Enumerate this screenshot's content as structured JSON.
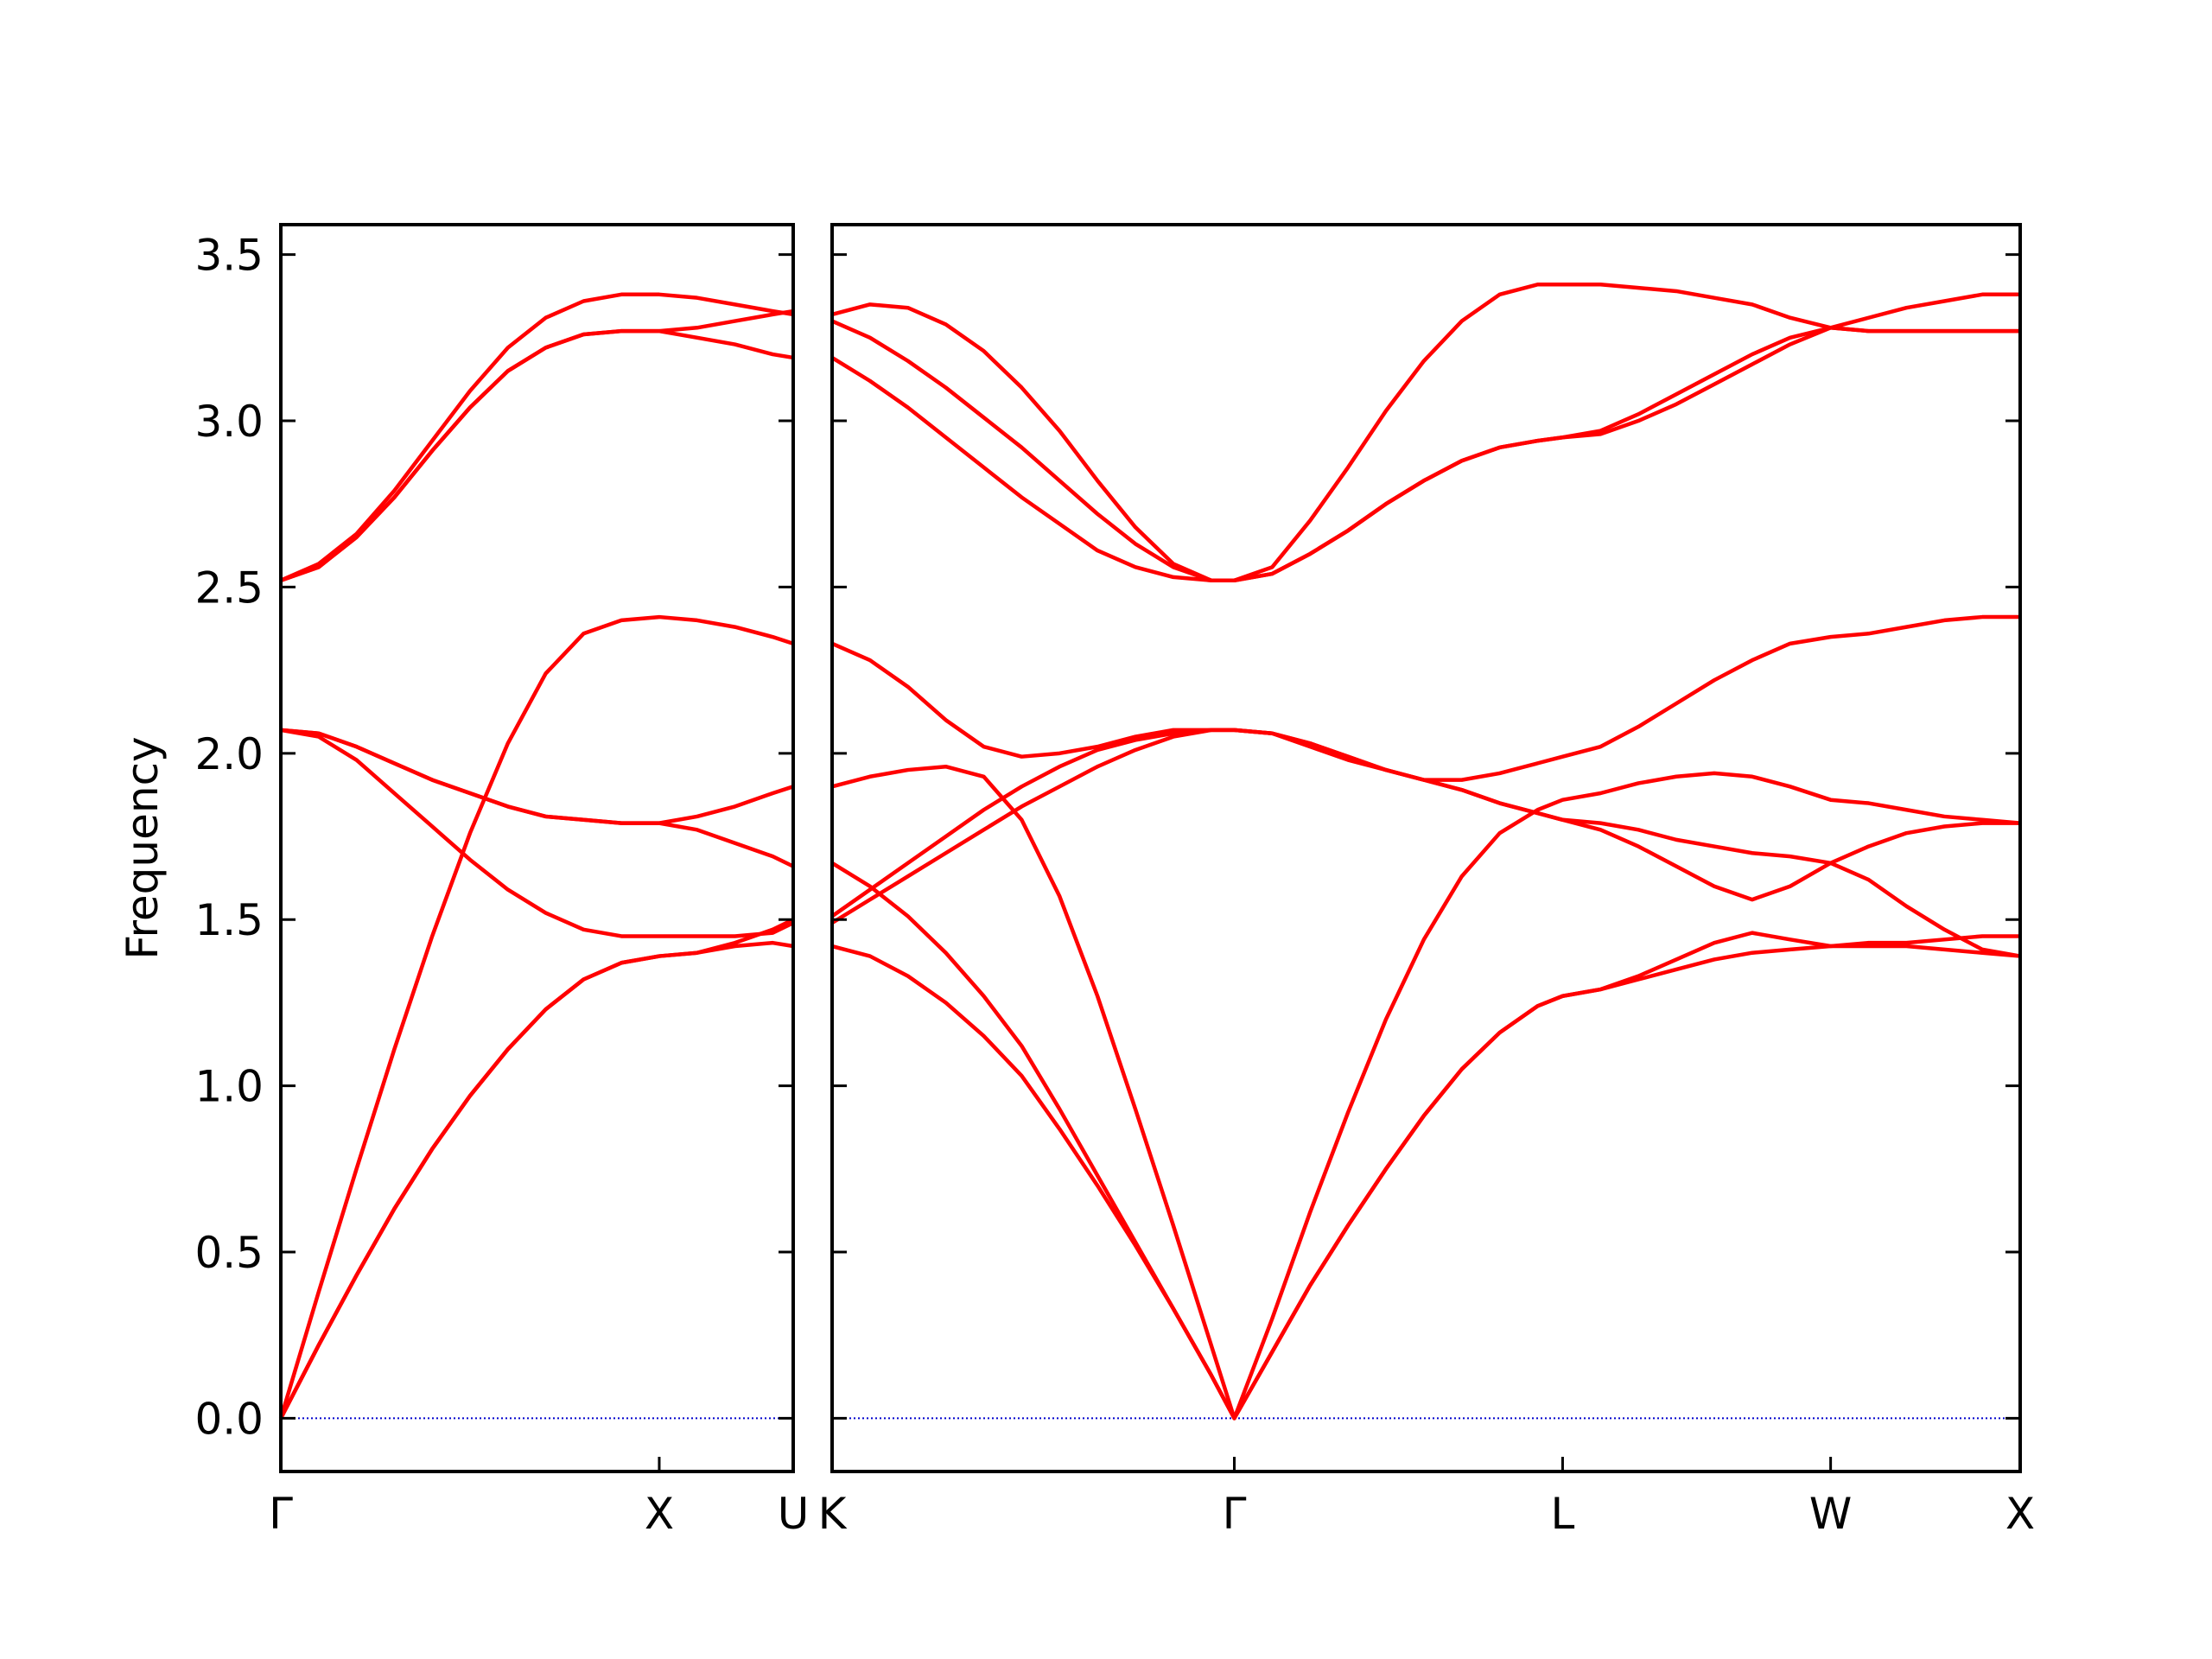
{
  "chart_data": [
    {
      "type": "line",
      "ylabel": "Frequency",
      "color": "#ff0000",
      "hline": 0,
      "hline_color": "#0000cc",
      "ytick_labels": true,
      "ylim": [
        -0.16,
        3.59
      ],
      "yticks": [
        {
          "value": 0,
          "label": "0.0"
        },
        0.5,
        {
          "value": 1,
          "label": "1.0"
        },
        1.5,
        {
          "value": 2,
          "label": "2.0"
        },
        2.5,
        {
          "value": 3,
          "label": "3.0"
        },
        3.5
      ],
      "xlim": [
        0,
        1.354
      ],
      "xticks": [
        {
          "value": 0,
          "label": "Γ"
        },
        {
          "value": 1,
          "label": "X"
        },
        {
          "value": 1.354,
          "label": "U"
        }
      ],
      "x": [
        0,
        0.1,
        0.2,
        0.3,
        0.4,
        0.5,
        0.6,
        0.7,
        0.8,
        0.9,
        1.0,
        1.1,
        1.2,
        1.3,
        1.354
      ],
      "series": [
        {
          "values": [
            0,
            0.22,
            0.43,
            0.63,
            0.81,
            0.97,
            1.11,
            1.23,
            1.32,
            1.37,
            1.39,
            1.4,
            1.42,
            1.43,
            1.42
          ]
        },
        {
          "values": [
            0,
            0.22,
            0.43,
            0.63,
            0.81,
            0.97,
            1.11,
            1.23,
            1.32,
            1.37,
            1.39,
            1.4,
            1.43,
            1.47,
            1.5
          ]
        },
        {
          "values": [
            2.07,
            2.05,
            1.98,
            1.88,
            1.78,
            1.68,
            1.59,
            1.52,
            1.47,
            1.45,
            1.45,
            1.45,
            1.45,
            1.46,
            1.49
          ]
        },
        {
          "values": [
            2.07,
            2.06,
            2.02,
            1.97,
            1.92,
            1.88,
            1.84,
            1.81,
            1.8,
            1.79,
            1.79,
            1.77,
            1.73,
            1.69,
            1.66
          ]
        },
        {
          "values": [
            2.07,
            2.06,
            2.02,
            1.97,
            1.92,
            1.88,
            1.84,
            1.81,
            1.8,
            1.79,
            1.79,
            1.81,
            1.84,
            1.88,
            1.9
          ]
        },
        {
          "values": [
            0,
            0.38,
            0.75,
            1.11,
            1.45,
            1.76,
            2.03,
            2.24,
            2.36,
            2.4,
            2.41,
            2.4,
            2.38,
            2.35,
            2.33
          ]
        },
        {
          "values": [
            2.52,
            2.56,
            2.65,
            2.77,
            2.91,
            3.04,
            3.15,
            3.22,
            3.26,
            3.27,
            3.27,
            3.25,
            3.23,
            3.2,
            3.19
          ]
        },
        {
          "values": [
            2.52,
            2.56,
            2.65,
            2.77,
            2.91,
            3.04,
            3.15,
            3.22,
            3.26,
            3.27,
            3.27,
            3.28,
            3.3,
            3.32,
            3.33
          ]
        },
        {
          "values": [
            2.52,
            2.57,
            2.66,
            2.79,
            2.94,
            3.09,
            3.22,
            3.31,
            3.36,
            3.38,
            3.38,
            3.37,
            3.35,
            3.33,
            3.32
          ]
        }
      ]
    },
    {
      "type": "line",
      "color": "#ff0000",
      "hline": 0,
      "hline_color": "#0000cc",
      "ytick_labels": false,
      "ylim": [
        -0.16,
        3.59
      ],
      "yticks": [
        {
          "value": 0,
          "label": "0.0"
        },
        0.5,
        {
          "value": 1,
          "label": "1.0"
        },
        1.5,
        {
          "value": 2,
          "label": "2.0"
        },
        2.5,
        {
          "value": 3,
          "label": "3.0"
        },
        3.5
      ],
      "xlim": [
        0,
        3.134
      ],
      "xticks": [
        {
          "value": 0,
          "label": "K"
        },
        {
          "value": 1.061,
          "label": "Γ"
        },
        {
          "value": 1.927,
          "label": "L"
        },
        {
          "value": 2.634,
          "label": "W"
        },
        {
          "value": 3.134,
          "label": "X"
        }
      ],
      "x": [
        0,
        0.1,
        0.2,
        0.3,
        0.4,
        0.5,
        0.6,
        0.7,
        0.8,
        0.9,
        1.0,
        1.061,
        1.161,
        1.261,
        1.361,
        1.461,
        1.561,
        1.661,
        1.761,
        1.861,
        1.927,
        2.027,
        2.127,
        2.227,
        2.327,
        2.427,
        2.527,
        2.634,
        2.734,
        2.834,
        2.934,
        3.034,
        3.134
      ],
      "series": [
        {
          "values": [
            1.42,
            1.39,
            1.33,
            1.25,
            1.15,
            1.03,
            0.87,
            0.7,
            0.52,
            0.33,
            0.13,
            0,
            0.2,
            0.4,
            0.58,
            0.75,
            0.91,
            1.05,
            1.16,
            1.24,
            1.27,
            1.29,
            1.32,
            1.35,
            1.38,
            1.4,
            1.41,
            1.42,
            1.43,
            1.43,
            1.44,
            1.45,
            1.45
          ]
        },
        {
          "values": [
            1.67,
            1.6,
            1.51,
            1.4,
            1.27,
            1.12,
            0.93,
            0.73,
            0.53,
            0.33,
            0.13,
            0,
            0.2,
            0.4,
            0.58,
            0.75,
            0.91,
            1.05,
            1.16,
            1.24,
            1.27,
            1.29,
            1.33,
            1.38,
            1.43,
            1.46,
            1.44,
            1.42,
            1.42,
            1.42,
            1.41,
            1.4,
            1.39
          ]
        },
        {
          "values": [
            1.9,
            1.93,
            1.95,
            1.96,
            1.93,
            1.8,
            1.57,
            1.27,
            0.93,
            0.58,
            0.22,
            0,
            0.3,
            0.62,
            0.92,
            1.2,
            1.44,
            1.63,
            1.76,
            1.83,
            1.86,
            1.88,
            1.91,
            1.93,
            1.94,
            1.93,
            1.9,
            1.86,
            1.85,
            1.83,
            1.81,
            1.8,
            1.79
          ]
        },
        {
          "values": [
            1.49,
            1.56,
            1.63,
            1.7,
            1.77,
            1.84,
            1.9,
            1.96,
            2.01,
            2.05,
            2.07,
            2.07,
            2.06,
            2.03,
            1.99,
            1.95,
            1.92,
            1.89,
            1.85,
            1.82,
            1.8,
            1.77,
            1.72,
            1.66,
            1.6,
            1.56,
            1.6,
            1.67,
            1.72,
            1.76,
            1.78,
            1.79,
            1.79
          ]
        },
        {
          "values": [
            1.51,
            1.59,
            1.67,
            1.75,
            1.83,
            1.9,
            1.96,
            2.01,
            2.04,
            2.06,
            2.07,
            2.07,
            2.06,
            2.03,
            1.99,
            1.95,
            1.92,
            1.89,
            1.85,
            1.82,
            1.8,
            1.79,
            1.77,
            1.74,
            1.72,
            1.7,
            1.69,
            1.67,
            1.62,
            1.54,
            1.47,
            1.41,
            1.39
          ]
        },
        {
          "values": [
            2.33,
            2.28,
            2.2,
            2.1,
            2.02,
            1.99,
            2.0,
            2.02,
            2.05,
            2.07,
            2.07,
            2.07,
            2.06,
            2.02,
            1.98,
            1.95,
            1.92,
            1.92,
            1.94,
            1.97,
            1.99,
            2.02,
            2.08,
            2.15,
            2.22,
            2.28,
            2.33,
            2.35,
            2.36,
            2.38,
            2.4,
            2.41,
            2.41
          ]
        },
        {
          "values": [
            3.19,
            3.12,
            3.04,
            2.95,
            2.86,
            2.77,
            2.69,
            2.61,
            2.56,
            2.53,
            2.52,
            2.52,
            2.54,
            2.6,
            2.67,
            2.75,
            2.82,
            2.88,
            2.92,
            2.94,
            2.95,
            2.97,
            3.02,
            3.08,
            3.14,
            3.2,
            3.25,
            3.28,
            3.31,
            3.34,
            3.36,
            3.38,
            3.38
          ]
        },
        {
          "values": [
            3.3,
            3.25,
            3.18,
            3.1,
            3.01,
            2.92,
            2.82,
            2.72,
            2.63,
            2.56,
            2.52,
            2.52,
            2.54,
            2.6,
            2.67,
            2.75,
            2.82,
            2.88,
            2.92,
            2.94,
            2.95,
            2.96,
            3.0,
            3.05,
            3.11,
            3.17,
            3.23,
            3.28,
            3.27,
            3.27,
            3.27,
            3.27,
            3.27
          ]
        },
        {
          "values": [
            3.32,
            3.35,
            3.34,
            3.29,
            3.21,
            3.1,
            2.97,
            2.82,
            2.68,
            2.57,
            2.52,
            2.52,
            2.56,
            2.7,
            2.86,
            3.03,
            3.18,
            3.3,
            3.38,
            3.41,
            3.41,
            3.41,
            3.4,
            3.39,
            3.37,
            3.35,
            3.31,
            3.28,
            3.27,
            3.27,
            3.27,
            3.27,
            3.27
          ]
        }
      ]
    }
  ]
}
